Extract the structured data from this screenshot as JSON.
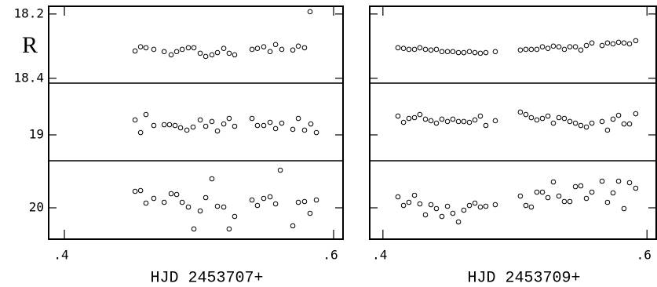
{
  "chart_data": [
    {
      "type": "scatter",
      "ylabel": "R",
      "xlabel": "HJD 2453707+",
      "xlim": [
        0.3883,
        0.607
      ],
      "xticks": [
        {
          "value": 0.4,
          "label": ".4"
        },
        {
          "value": 0.6,
          "label": ".6"
        }
      ],
      "show_ytick_labels": true,
      "panels": [
        {
          "ylim": [
            18.415,
            18.176
          ],
          "yticks": [
            18.2,
            18.4
          ],
          "x": [
            0.4525,
            0.4566,
            0.4606,
            0.4664,
            0.4741,
            0.4793,
            0.4834,
            0.4875,
            0.4921,
            0.4962,
            0.5009,
            0.505,
            0.5096,
            0.5137,
            0.5184,
            0.5224,
            0.5265,
            0.5394,
            0.5434,
            0.5481,
            0.5528,
            0.5569,
            0.5615,
            0.5697,
            0.5738,
            0.5784,
            0.5825
          ],
          "values": [
            18.315,
            18.302,
            18.305,
            18.31,
            18.317,
            18.327,
            18.317,
            18.31,
            18.305,
            18.305,
            18.322,
            18.332,
            18.327,
            18.32,
            18.307,
            18.322,
            18.327,
            18.31,
            18.307,
            18.302,
            18.317,
            18.295,
            18.31,
            18.312,
            18.3,
            18.305,
            18.193
          ]
        },
        {
          "ylim": [
            19.3,
            18.4
          ],
          "yticks": [
            19
          ],
          "x": [
            0.4525,
            0.4566,
            0.4606,
            0.4664,
            0.4741,
            0.4781,
            0.4822,
            0.4863,
            0.491,
            0.4956,
            0.5009,
            0.505,
            0.5096,
            0.5137,
            0.5184,
            0.5224,
            0.5265,
            0.5394,
            0.5434,
            0.5481,
            0.5528,
            0.5569,
            0.5615,
            0.5697,
            0.5738,
            0.5784,
            0.5831,
            0.5872
          ],
          "values": [
            18.827,
            18.973,
            18.764,
            18.891,
            18.882,
            18.882,
            18.891,
            18.918,
            18.945,
            18.909,
            18.827,
            18.9,
            18.845,
            18.955,
            18.873,
            18.809,
            18.9,
            18.809,
            18.891,
            18.891,
            18.855,
            18.927,
            18.864,
            18.936,
            18.809,
            18.945,
            18.873,
            18.973
          ]
        },
        {
          "ylim": [
            20.4,
            19.4
          ],
          "yticks": [
            20
          ],
          "x": [
            0.4525,
            0.4566,
            0.4606,
            0.4664,
            0.4741,
            0.4793,
            0.4834,
            0.4875,
            0.4921,
            0.4962,
            0.5009,
            0.505,
            0.5096,
            0.5137,
            0.5184,
            0.5224,
            0.5265,
            0.5394,
            0.5434,
            0.5481,
            0.5528,
            0.5569,
            0.5604,
            0.5697,
            0.5738,
            0.5784,
            0.5825,
            0.5872
          ],
          "values": [
            19.79,
            19.78,
            19.94,
            19.88,
            19.93,
            19.82,
            19.83,
            19.93,
            19.99,
            20.27,
            20.04,
            19.87,
            19.63,
            19.98,
            19.99,
            20.27,
            20.11,
            19.9,
            19.97,
            19.88,
            19.86,
            19.95,
            19.52,
            20.23,
            19.93,
            19.92,
            20.07,
            19.9
          ]
        }
      ]
    },
    {
      "type": "scatter",
      "xlabel": "HJD 2453709+",
      "xlim": [
        0.39,
        0.607
      ],
      "xticks": [
        {
          "value": 0.4,
          "label": ".4"
        },
        {
          "value": 0.6,
          "label": ".6"
        }
      ],
      "show_ytick_labels": false,
      "panels": [
        {
          "ylim": [
            18.415,
            18.176
          ],
          "yticks": [
            18.2,
            18.4
          ],
          "x": [
            0.4114,
            0.4156,
            0.4197,
            0.4239,
            0.428,
            0.4322,
            0.4364,
            0.4405,
            0.4447,
            0.4489,
            0.453,
            0.4572,
            0.4613,
            0.4655,
            0.4697,
            0.4738,
            0.478,
            0.4851,
            0.5041,
            0.5083,
            0.5124,
            0.5166,
            0.5208,
            0.525,
            0.5291,
            0.5333,
            0.5374,
            0.5416,
            0.5458,
            0.5499,
            0.5541,
            0.5583,
            0.566,
            0.5701,
            0.5743,
            0.5785,
            0.5826,
            0.5868,
            0.5915
          ],
          "values": [
            18.305,
            18.307,
            18.31,
            18.31,
            18.305,
            18.31,
            18.312,
            18.31,
            18.317,
            18.317,
            18.317,
            18.32,
            18.32,
            18.317,
            18.32,
            18.322,
            18.32,
            18.317,
            18.312,
            18.31,
            18.31,
            18.31,
            18.302,
            18.307,
            18.3,
            18.302,
            18.31,
            18.302,
            18.302,
            18.312,
            18.298,
            18.29,
            18.298,
            18.29,
            18.293,
            18.288,
            18.29,
            18.293,
            18.283
          ]
        },
        {
          "ylim": [
            19.3,
            18.4
          ],
          "yticks": [
            19
          ],
          "x": [
            0.4114,
            0.4156,
            0.4197,
            0.4239,
            0.428,
            0.4322,
            0.4364,
            0.4405,
            0.4447,
            0.4489,
            0.453,
            0.4572,
            0.4613,
            0.4655,
            0.4697,
            0.4738,
            0.478,
            0.4851,
            0.5041,
            0.5083,
            0.5124,
            0.5166,
            0.5208,
            0.525,
            0.5291,
            0.5333,
            0.5374,
            0.5416,
            0.5458,
            0.5499,
            0.5541,
            0.5583,
            0.566,
            0.5701,
            0.5743,
            0.5785,
            0.5826,
            0.5868,
            0.5915
          ],
          "values": [
            18.782,
            18.855,
            18.809,
            18.8,
            18.764,
            18.818,
            18.836,
            18.864,
            18.818,
            18.845,
            18.818,
            18.845,
            18.845,
            18.855,
            18.827,
            18.782,
            18.891,
            18.836,
            18.736,
            18.764,
            18.8,
            18.827,
            18.809,
            18.782,
            18.864,
            18.8,
            18.809,
            18.845,
            18.864,
            18.891,
            18.909,
            18.864,
            18.845,
            18.945,
            18.818,
            18.773,
            18.873,
            18.873,
            18.755
          ]
        },
        {
          "ylim": [
            20.4,
            19.4
          ],
          "yticks": [
            20
          ],
          "x": [
            0.4114,
            0.4156,
            0.4197,
            0.4239,
            0.428,
            0.4322,
            0.4364,
            0.4405,
            0.4447,
            0.4489,
            0.453,
            0.4572,
            0.4613,
            0.4655,
            0.4697,
            0.4738,
            0.478,
            0.4851,
            0.5041,
            0.5083,
            0.5124,
            0.5166,
            0.5208,
            0.525,
            0.5291,
            0.5333,
            0.5374,
            0.5416,
            0.5458,
            0.5499,
            0.5541,
            0.5583,
            0.566,
            0.5701,
            0.5743,
            0.5785,
            0.5826,
            0.5868,
            0.5915
          ],
          "values": [
            19.86,
            19.97,
            19.93,
            19.84,
            19.95,
            20.09,
            19.96,
            20.01,
            20.11,
            19.98,
            20.07,
            20.18,
            20.03,
            19.97,
            19.94,
            19.99,
            19.98,
            19.96,
            19.85,
            19.97,
            19.99,
            19.8,
            19.8,
            19.87,
            19.67,
            19.85,
            19.92,
            19.92,
            19.73,
            19.72,
            19.88,
            19.8,
            19.66,
            19.93,
            19.81,
            19.66,
            20.01,
            19.68,
            19.75
          ]
        }
      ]
    }
  ]
}
